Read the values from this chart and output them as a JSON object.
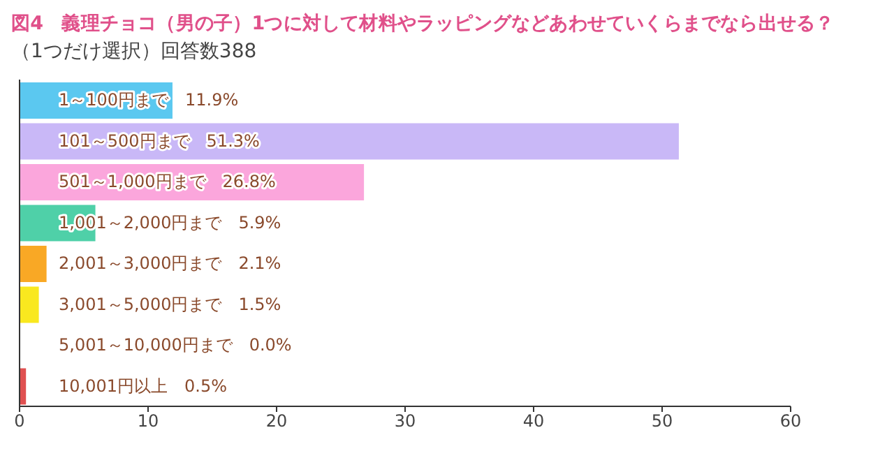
{
  "chart_data": {
    "type": "bar",
    "orientation": "horizontal",
    "title": "図4　義理チョコ（男の子）1つに対して材料やラッピングなどあわせていくらまでなら出せる？",
    "subtitle": "（1つだけ選択）回答数388",
    "categories": [
      "1～100円まで",
      "101～500円まで",
      "501～1,000円まで",
      "1,001～2,000円まで",
      "2,001～3,000円まで",
      "3,001～5,000円まで",
      "5,001～10,000円まで",
      "10,001円以上"
    ],
    "values": [
      11.9,
      51.3,
      26.8,
      5.9,
      2.1,
      1.5,
      0.0,
      0.5
    ],
    "value_labels": [
      "11.9%",
      "51.3%",
      "26.8%",
      "5.9%",
      "2.1%",
      "1.5%",
      "0.0%",
      "0.5%"
    ],
    "colors": [
      "#5bc8f0",
      "#c9b8f7",
      "#fba6dc",
      "#4fd0a8",
      "#f9a825",
      "#f9e81f",
      "#cccccc",
      "#e05050"
    ],
    "xlim": [
      0,
      60
    ],
    "xticks": [
      0,
      10,
      20,
      30,
      40,
      50,
      60
    ],
    "grid": false,
    "legend": false,
    "tick_labels": "x"
  }
}
